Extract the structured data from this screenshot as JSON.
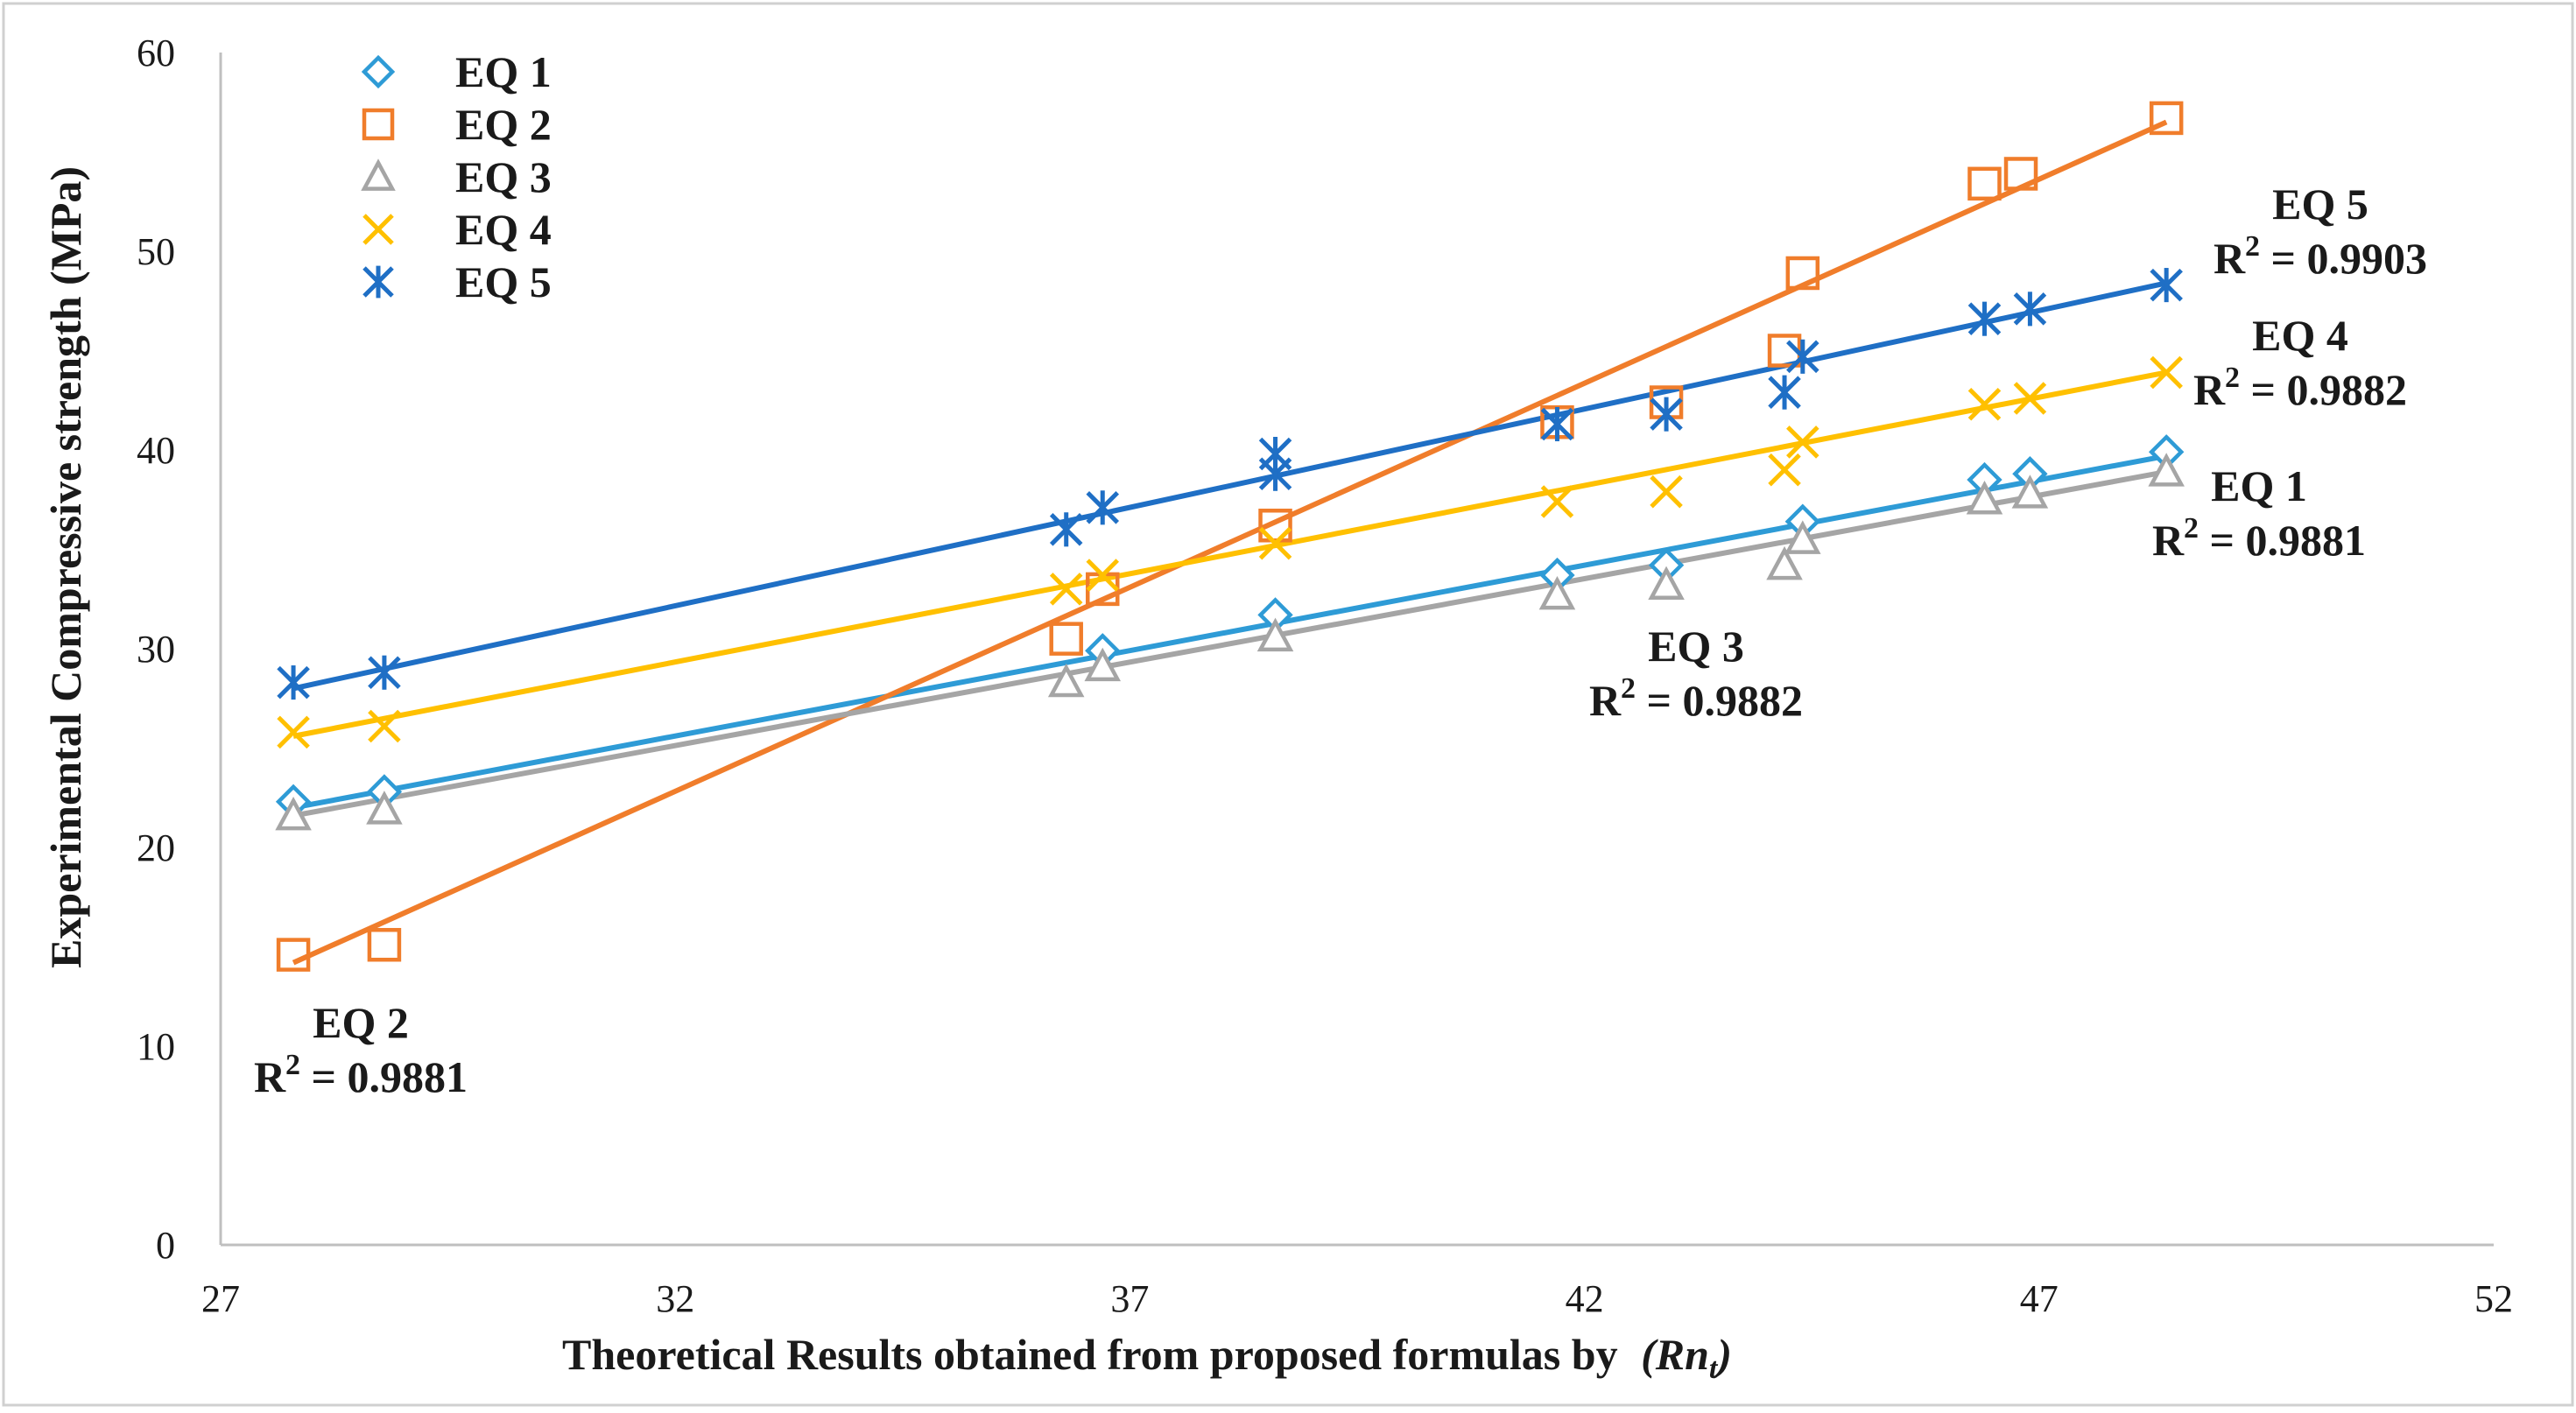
{
  "chart_data": {
    "type": "scatter",
    "title": "",
    "xlabel": "Theoretical Results obtained from proposed formulas by",
    "xlabel_symbol": "(Rn",
    "xlabel_symbol_sub": "t",
    "xlabel_symbol_close": ")",
    "ylabel": "Experimental Compressive strength (MPa)",
    "xlim": [
      27,
      52
    ],
    "ylim": [
      0,
      60
    ],
    "xticks": [
      "27",
      "32",
      "37",
      "42",
      "47",
      "52"
    ],
    "yticks": [
      "0",
      "10",
      "20",
      "30",
      "40",
      "50",
      "60"
    ],
    "grid": false,
    "legend_position": "top-left",
    "trendlines": true,
    "series": [
      {
        "name": "EQ 1",
        "marker": "diamond",
        "color": "#2E9BD6",
        "line_color": "#2E9BD6",
        "x": [
          27.8,
          28.8,
          36.7,
          38.6,
          41.7,
          42.9,
          44.4,
          46.4,
          46.9,
          48.4
        ],
        "y": [
          22.3,
          22.8,
          29.9,
          31.7,
          33.7,
          34.2,
          36.4,
          38.5,
          38.8,
          39.9
        ],
        "fit": {
          "x": [
            27.8,
            48.4
          ],
          "y": [
            22.0,
            39.7
          ]
        }
      },
      {
        "name": "EQ 2",
        "marker": "square",
        "color": "#F07D2B",
        "line_color": "#F07D2B",
        "x": [
          27.8,
          28.8,
          36.3,
          36.7,
          38.6,
          41.7,
          42.9,
          44.2,
          44.4,
          46.4,
          46.8,
          48.4
        ],
        "y": [
          14.6,
          15.1,
          30.5,
          33.0,
          36.2,
          41.4,
          42.4,
          45.0,
          48.9,
          53.4,
          53.9,
          56.7
        ],
        "fit": {
          "x": [
            27.8,
            48.4
          ],
          "y": [
            14.2,
            56.5
          ]
        }
      },
      {
        "name": "EQ 3",
        "marker": "triangle",
        "color": "#A5A5A5",
        "line_color": "#A5A5A5",
        "x": [
          27.8,
          28.8,
          36.3,
          36.7,
          38.6,
          41.7,
          42.9,
          44.2,
          44.4,
          46.4,
          46.9,
          48.4
        ],
        "y": [
          21.6,
          21.9,
          28.3,
          29.1,
          30.6,
          32.7,
          33.2,
          34.2,
          35.5,
          37.5,
          37.8,
          38.9
        ],
        "fit": {
          "x": [
            27.8,
            48.4
          ],
          "y": [
            21.6,
            38.9
          ]
        }
      },
      {
        "name": "EQ 4",
        "marker": "x",
        "color": "#FFC000",
        "line_color": "#FFC000",
        "x": [
          27.8,
          28.8,
          36.3,
          36.7,
          38.6,
          41.7,
          42.9,
          44.2,
          44.4,
          46.4,
          46.9,
          48.4
        ],
        "y": [
          25.8,
          26.1,
          33.0,
          33.7,
          35.3,
          37.4,
          37.9,
          39.0,
          40.4,
          42.3,
          42.6,
          43.9
        ],
        "fit": {
          "x": [
            27.8,
            48.4
          ],
          "y": [
            25.6,
            43.9
          ]
        }
      },
      {
        "name": "EQ 5",
        "marker": "star",
        "color": "#1F6FC5",
        "line_color": "#1F6FC5",
        "x": [
          27.8,
          28.8,
          36.3,
          36.7,
          38.6,
          38.6,
          41.7,
          42.9,
          44.2,
          44.4,
          46.4,
          46.9,
          48.4
        ],
        "y": [
          28.3,
          28.8,
          36.0,
          37.1,
          38.8,
          39.8,
          41.3,
          41.8,
          42.9,
          44.7,
          46.6,
          47.1,
          48.3
        ],
        "fit": {
          "x": [
            27.8,
            48.4
          ],
          "y": [
            28.0,
            48.4
          ]
        }
      }
    ],
    "annotations": [
      {
        "name": "EQ 5",
        "label": "EQ 5",
        "r2": "R",
        "sup": "2",
        "value": " = 0.9903",
        "series": 4
      },
      {
        "name": "EQ 4",
        "label": "EQ 4",
        "r2": "R",
        "sup": "2",
        "value": " = 0.9882",
        "series": 3
      },
      {
        "name": "EQ 1",
        "label": "EQ 1",
        "r2": "R",
        "sup": "2",
        "value": " = 0.9881",
        "series": 0
      },
      {
        "name": "EQ 3",
        "label": "EQ 3",
        "r2": "R",
        "sup": "2",
        "value": " = 0.9882",
        "series": 2
      },
      {
        "name": "EQ 2",
        "label": "EQ 2",
        "r2": "R",
        "sup": "2",
        "value": " = 0.9881",
        "series": 1
      }
    ]
  }
}
